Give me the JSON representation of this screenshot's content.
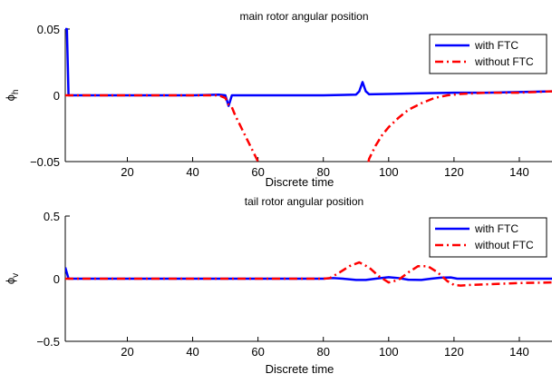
{
  "chart_data": [
    {
      "type": "line",
      "title": "main rotor angular position",
      "xlabel": "Discrete time",
      "ylabel": "ϕ",
      "ylabel_sub": "h",
      "xlim": [
        1,
        150
      ],
      "ylim": [
        -0.05,
        0.05
      ],
      "xticks": [
        20,
        40,
        60,
        80,
        100,
        120,
        140
      ],
      "yticks": [
        {
          "value": -0.05,
          "label": "−0.05"
        },
        {
          "value": 0,
          "label": "0"
        },
        {
          "value": 0.05,
          "label": "0.05"
        }
      ],
      "grid": false,
      "legend_position": "top-right",
      "series": [
        {
          "name": "with FTC",
          "color": "#0000ff",
          "style": "solid",
          "x": [
            1,
            1.5,
            2,
            3,
            10,
            20,
            30,
            40,
            48,
            50,
            51,
            52,
            55,
            60,
            70,
            80,
            90,
            91,
            92,
            93,
            94,
            100,
            110,
            120,
            130,
            140,
            150
          ],
          "y": [
            0.05,
            0.05,
            0.0,
            0.0,
            0.0,
            0.0,
            0.0,
            0.0,
            0.0005,
            0.0,
            -0.008,
            0.0,
            0.0,
            0.0,
            0.0,
            0.0,
            0.0005,
            0.003,
            0.01,
            0.003,
            0.0008,
            0.001,
            0.0015,
            0.002,
            0.002,
            0.0025,
            0.003
          ]
        },
        {
          "name": "without FTC",
          "color": "#ff0000",
          "style": "dashdot",
          "x": [
            1,
            10,
            20,
            30,
            40,
            48,
            50,
            51,
            52,
            53,
            55,
            57,
            59,
            61,
            62,
            93,
            94,
            96,
            98,
            100,
            103,
            106,
            110,
            114,
            118,
            122,
            130,
            140,
            150
          ],
          "y": [
            0.0,
            0.0,
            0.0,
            0.0,
            0.0,
            0.0,
            -0.002,
            -0.007,
            -0.009,
            -0.015,
            -0.025,
            -0.035,
            -0.045,
            -0.055,
            -0.06,
            -0.06,
            -0.048,
            -0.038,
            -0.03,
            -0.024,
            -0.017,
            -0.011,
            -0.006,
            -0.002,
            0.0,
            0.001,
            0.002,
            0.002,
            0.003
          ]
        }
      ]
    },
    {
      "type": "line",
      "title": "tail rotor angular position",
      "xlabel": "Discrete time",
      "ylabel": "ϕ",
      "ylabel_sub": "v",
      "xlim": [
        1,
        150
      ],
      "ylim": [
        -0.5,
        0.5
      ],
      "xticks": [
        20,
        40,
        60,
        80,
        100,
        120,
        140
      ],
      "yticks": [
        {
          "value": -0.5,
          "label": "−0.5"
        },
        {
          "value": 0,
          "label": "0"
        },
        {
          "value": 0.5,
          "label": "0.5"
        }
      ],
      "grid": false,
      "legend_position": "top-right",
      "series": [
        {
          "name": "with FTC",
          "color": "#0000ff",
          "style": "solid",
          "x": [
            1,
            2,
            3,
            10,
            20,
            40,
            60,
            80,
            83,
            86,
            90,
            93,
            96,
            100,
            103,
            106,
            110,
            113,
            116,
            119,
            121,
            122,
            125,
            130,
            140,
            150
          ],
          "y": [
            0.09,
            0.0,
            0.0,
            0.0,
            0.0,
            0.0,
            0.0,
            0.0,
            0.005,
            0.0,
            -0.01,
            -0.01,
            0.0,
            0.012,
            0.005,
            -0.008,
            -0.01,
            0.0,
            0.008,
            0.01,
            0.0,
            0.0,
            0.0,
            0.0,
            0.0,
            0.0
          ]
        },
        {
          "name": "without FTC",
          "color": "#ff0000",
          "style": "dashdot",
          "x": [
            1,
            10,
            20,
            40,
            60,
            80,
            82,
            85,
            88,
            91,
            94,
            97,
            100,
            103,
            106,
            109,
            112,
            115,
            118,
            120,
            122,
            125,
            130,
            140,
            150
          ],
          "y": [
            0.0,
            0.0,
            0.0,
            0.0,
            0.0,
            0.0,
            0.005,
            0.05,
            0.1,
            0.13,
            0.09,
            0.02,
            -0.03,
            -0.01,
            0.05,
            0.1,
            0.1,
            0.05,
            -0.02,
            -0.05,
            -0.055,
            -0.05,
            -0.045,
            -0.035,
            -0.03
          ]
        }
      ]
    }
  ]
}
